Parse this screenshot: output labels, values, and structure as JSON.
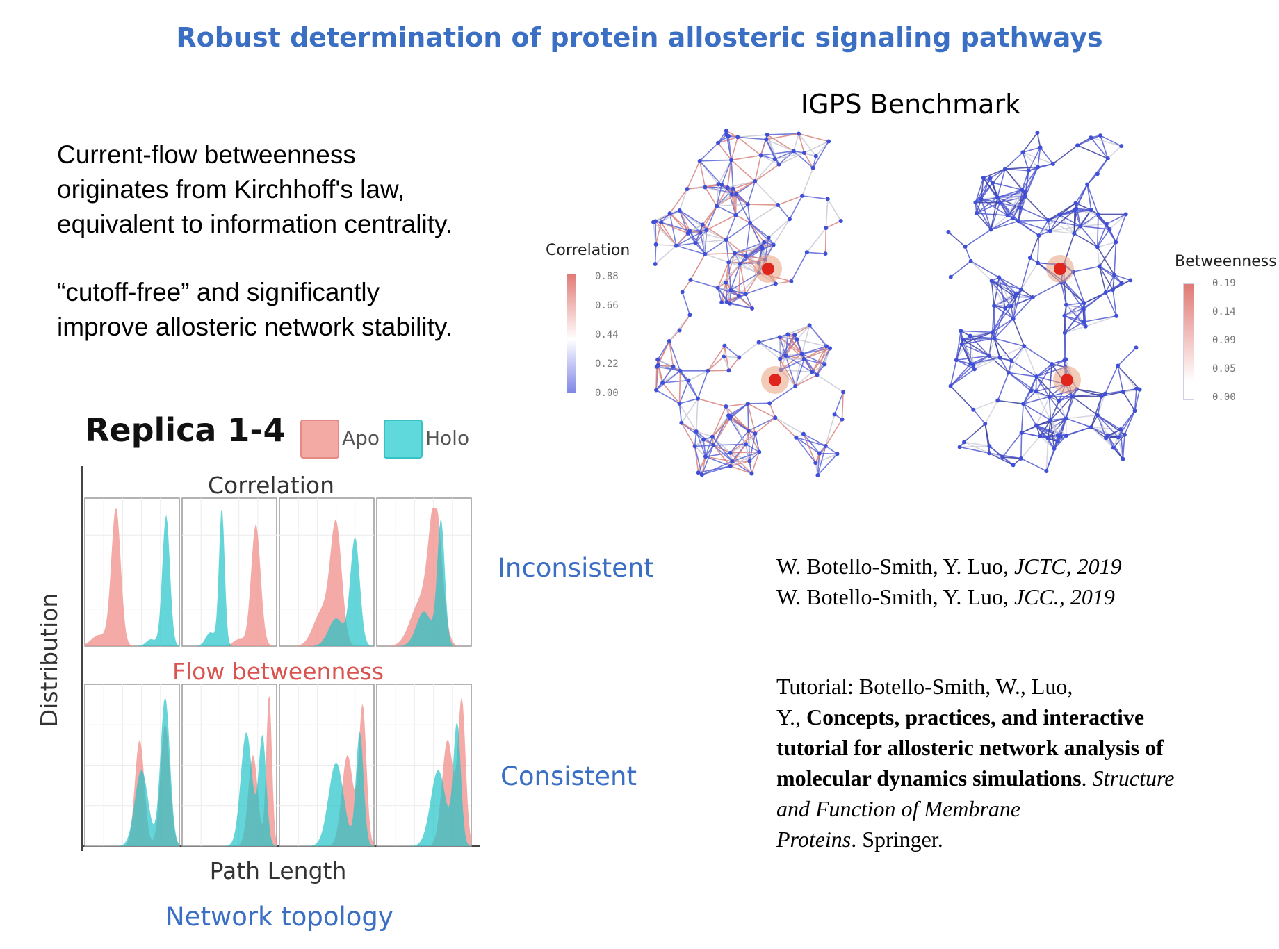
{
  "title": "Robust determination of protein allosteric signaling pathways",
  "intro": {
    "line1": "Current-flow betweenness",
    "line2": "originates from Kirchhoff's law,",
    "line3": "equivalent to information centrality.",
    "line4": "“cutoff-free” and significantly",
    "line5": "improve allosteric network stability."
  },
  "benchmark": {
    "title": "IGPS Benchmark",
    "left_colorbar": {
      "label": "Correlation",
      "ticks": [
        "0.88",
        "0.66",
        "0.44",
        "0.22",
        "0.00"
      ]
    },
    "right_colorbar": {
      "label": "Betweenness",
      "ticks": [
        "0.19",
        "0.14",
        "0.09",
        "0.05",
        "0.00"
      ]
    }
  },
  "replica": {
    "title": "Replica 1-4",
    "legend_apo": "Apo",
    "legend_holo": "Holo",
    "top_panel_title": "Correlation",
    "bottom_panel_title": "Flow betweenness",
    "ylabel": "Distribution",
    "xlabel": "Path Length",
    "caption": "Network topology"
  },
  "labels": {
    "inconsistent": "Inconsistent",
    "consistent": "Consistent"
  },
  "refs": {
    "r1_authors": "W. Botello-Smith, Y. Luo, ",
    "r1_journal": "JCTC, 2019",
    "r2_authors": "W. Botello-Smith, Y. Luo, ",
    "r2_journal": "JCC., 2019",
    "tut_line1": "Tutorial: Botello-Smith, W., Luo,",
    "tut_line2a": "Y., ",
    "tut_bold1": "Concepts, practices, and interactive",
    "tut_bold2": "tutorial for allosteric network analysis of",
    "tut_bold3": "molecular dynamics simulations",
    "tut_line5b": ". ",
    "tut_italic1": "Structure",
    "tut_italic2": "and Function of Membrane",
    "tut_italic3": "Proteins",
    "tut_end": ". Springer."
  },
  "colors": {
    "title_blue": "#3a6fc4",
    "apo": "#f08f8a",
    "holo": "#3ecfd2",
    "flow_red": "#d9534f"
  }
}
